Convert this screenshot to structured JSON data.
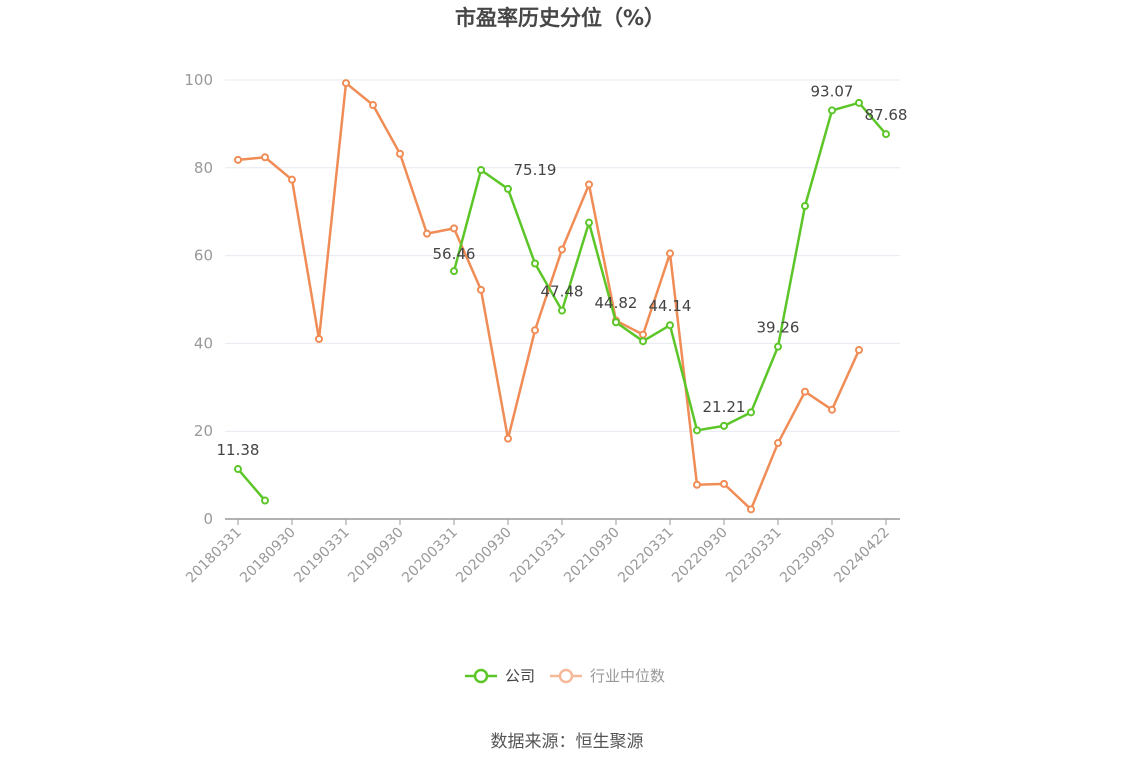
{
  "chart_data": {
    "type": "line",
    "title": "市盈率历史分位（%）",
    "source": "数据来源：恒生聚源",
    "ylim": [
      0,
      100
    ],
    "yticks": [
      0,
      20,
      40,
      60,
      80,
      100
    ],
    "x": [
      "20180331",
      "20180630",
      "20180930",
      "20181231",
      "20190331",
      "20190630",
      "20190930",
      "20191231",
      "20200331",
      "20200630",
      "20200930",
      "20201231",
      "20210331",
      "20210630",
      "20210930",
      "20211231",
      "20220331",
      "20220630",
      "20220930",
      "20221231",
      "20230331",
      "20230630",
      "20230930",
      "20231231",
      "20240422"
    ],
    "xtick_labels": [
      "20180331",
      "20180930",
      "20190331",
      "20190930",
      "20200331",
      "20200930",
      "20210331",
      "20210930",
      "20220331",
      "20220930",
      "20230331",
      "20230930",
      "20240422"
    ],
    "legend_position": "bottom-center",
    "grid": true,
    "series": [
      {
        "name": "公司",
        "color": "#5cc629",
        "values": [
          11.38,
          4.2,
          null,
          null,
          null,
          null,
          null,
          null,
          56.46,
          79.5,
          75.19,
          58.2,
          47.48,
          67.5,
          44.82,
          40.5,
          44.14,
          20.2,
          21.21,
          24.3,
          39.26,
          71.3,
          93.07,
          94.8,
          87.68
        ],
        "labels": {
          "0": "11.38",
          "8": "56.46",
          "10": "75.19",
          "12": "47.48",
          "14": "44.82",
          "16": "44.14",
          "18": "21.21",
          "20": "39.26",
          "22": "93.07",
          "24": "87.68"
        }
      },
      {
        "name": "行业中位数",
        "color": "#f08c56",
        "values": [
          81.8,
          82.4,
          77.3,
          41.0,
          99.3,
          94.3,
          83.2,
          65.0,
          66.2,
          52.2,
          18.3,
          43.0,
          61.4,
          76.2,
          45.2,
          42.0,
          60.5,
          7.8,
          8.0,
          2.2,
          17.3,
          29.0,
          24.9,
          38.5,
          null
        ]
      }
    ]
  }
}
